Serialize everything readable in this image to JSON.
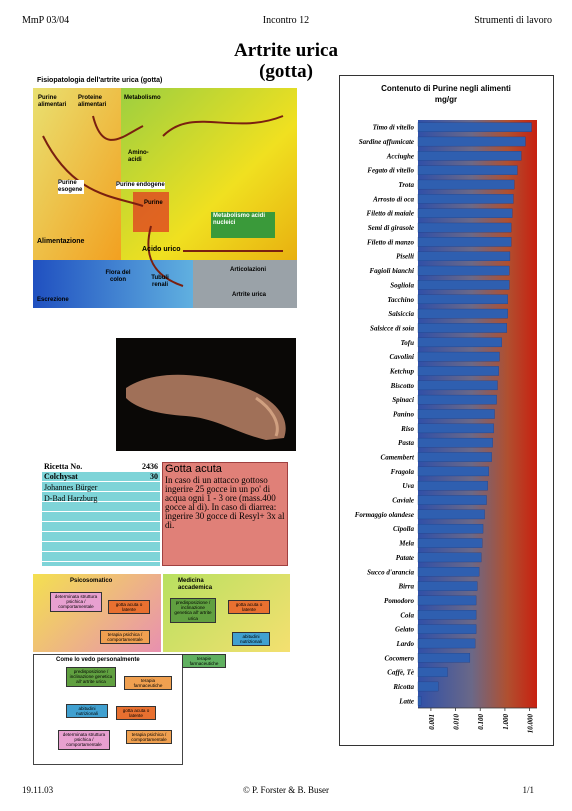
{
  "header": {
    "left": "MmP 03/04",
    "center": "Incontro 12",
    "right": "Strumenti di lavoro"
  },
  "title": [
    "Artrite urica",
    "(gotta)"
  ],
  "pathophysiology": {
    "title": "Fisiopatologia dell'artrite urica (gotta)",
    "labels": [
      "Purine alimentari",
      "Proteine alimentari",
      "Metabolismo",
      "Amino-acidi",
      "Purine esogene",
      "Purine endogene",
      "Purine",
      "Acido urico",
      "Metabolismo acidi nucleici",
      "Alimentazione",
      "Flora del colon",
      "Tubuli renali",
      "Articolazioni",
      "Artrite urica",
      "Escrezione"
    ]
  },
  "recipe": {
    "number_label": "Ricetta No.",
    "number": "2436",
    "drug": "Colchysat",
    "amount": "30",
    "author": "Johannes Bürger",
    "place": "D-Bad Harzburg"
  },
  "acute_gout": {
    "title": "Gotta acuta",
    "text": "In caso di un attacco gottoso ingerire 25 gocce in un po' di acqua ogni 1 - 3 ore (mass.400 gocce al dì). In caso di diarrea: ingerire 30 gocce di Resyl+ 3x al dì."
  },
  "perspectives": {
    "psychosomatic": "Psicosomatico",
    "academic": "Medicina accademica",
    "personal": "Come lo vedo personalmente",
    "boxes": [
      "determinata struttura psichica / comportamentale",
      "gotta acuta o latente",
      "terapia psichica / comportamentale",
      "predisposizione / inclinazione genetica all' artrite urica",
      "gotta acuta o latente",
      "abitudini nutrizionali",
      "terapie farmaceutiche",
      "predisposizione / inclinazione genetica all' artrite urica",
      "terapia farmaceutiche",
      "abitudini nutrizionali",
      "gotta acuta o latente",
      "determinata struttura psichica / comportamentale",
      "terapia psichica / comportamentale"
    ]
  },
  "chart_data": {
    "type": "bar",
    "title": "Contenuto di Purine negli alimenti",
    "subtitle": "mg/gr",
    "categories": [
      "Timo di vitello",
      "Sardine affumicate",
      "Acciughe",
      "Fegato di vitello",
      "Trota",
      "Arrosto di oca",
      "Filetto di maiale",
      "Semi di girasole",
      "Filetto di manzo",
      "Piselli",
      "Fagioli bianchi",
      "Sogliola",
      "Tacchino",
      "Salsiccia",
      "Salsicce di soia",
      "Tofu",
      "Cavolini",
      "Ketchup",
      "Biscotto",
      "Spinaci",
      "Panino",
      "Riso",
      "Pasta",
      "Camembert",
      "Fragola",
      "Uva",
      "Caviale",
      "Formaggio olandese",
      "Cipolla",
      "Mela",
      "Patate",
      "Succo d'arancia",
      "Birra",
      "Pomodoro",
      "Cola",
      "Gelato",
      "Lardo",
      "Cocomero",
      "Caffè, Tè",
      "Ricotta",
      "Latte"
    ],
    "values": [
      12,
      6.8,
      4.6,
      3.2,
      2.4,
      2.2,
      2.0,
      1.8,
      1.8,
      1.6,
      1.5,
      1.5,
      1.3,
      1.3,
      1.2,
      0.75,
      0.6,
      0.56,
      0.5,
      0.46,
      0.38,
      0.35,
      0.32,
      0.29,
      0.22,
      0.2,
      0.18,
      0.15,
      0.13,
      0.12,
      0.11,
      0.09,
      0.075,
      0.068,
      0.068,
      0.068,
      0.062,
      0.038,
      0.0047,
      0.002,
      0.0004
    ],
    "color": "#2f5fb0",
    "log_x": true,
    "orientation": "horizontal",
    "xlim": [
      0.0003,
      20
    ],
    "xticks": [
      {
        "value": 0.001,
        "label": "0.001"
      },
      {
        "value": 0.01,
        "label": "0.010"
      },
      {
        "value": 0.1,
        "label": "0.100"
      },
      {
        "value": 1,
        "label": "1.000"
      },
      {
        "value": 10,
        "label": "10.000"
      }
    ]
  },
  "footer": {
    "left": "19.11.03",
    "center": "© P. Forster & B. Buser",
    "right": "1/1"
  }
}
